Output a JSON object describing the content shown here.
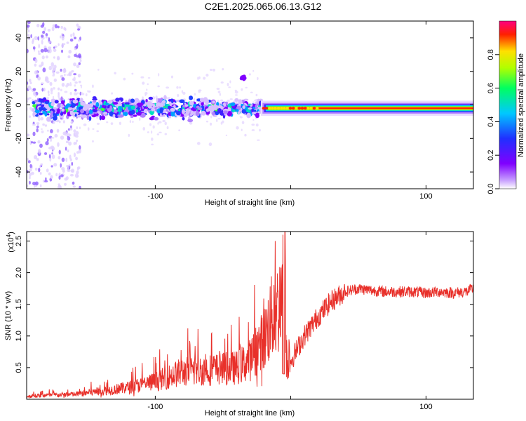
{
  "title": "C2E1.2025.065.06.13.G12",
  "colors": {
    "snr_line": "#e8302a",
    "background": "#ffffff",
    "colormap": [
      "#ffffff",
      "#c8a0ff",
      "#8000ff",
      "#2030ff",
      "#00c8ff",
      "#00ff60",
      "#b0ff00",
      "#ffe000",
      "#ff2000",
      "#ff0080"
    ]
  },
  "chart_data": [
    {
      "type": "heatmap",
      "name": "spectrogram",
      "xlabel": "Height of straight line (km)",
      "ylabel": "Frequency (Hz)",
      "xlim": [
        -195,
        135
      ],
      "ylim": [
        -50,
        50
      ],
      "xticks": [
        -100,
        0,
        100
      ],
      "xtick_labels": [
        "-100",
        "",
        "100"
      ],
      "yticks": [
        -40,
        -20,
        0,
        20,
        40
      ],
      "ytick_labels": [
        "-40",
        "-20",
        "0",
        "20",
        "40"
      ],
      "colorbar": {
        "label": "Normalized spectral amplitude",
        "range": [
          0,
          1
        ],
        "ticks": [
          0.0,
          0.2,
          0.4,
          0.6,
          0.8
        ],
        "tick_labels": [
          "0.0",
          "0.2",
          "0.4",
          "0.6",
          "0.8"
        ]
      },
      "description_points": {
        "signal_band_center_hz": -2,
        "noisy_region_km": [
          -195,
          -20
        ],
        "clean_tone_region_km": [
          -20,
          135
        ]
      }
    },
    {
      "type": "line",
      "name": "snr",
      "xlabel": "Height of straight line (km)",
      "ylabel": "SNR (10 * v/v)",
      "multiplier_label": "(x10",
      "multiplier_exp": "4",
      "multiplier_close": ")",
      "xlim": [
        -195,
        135
      ],
      "ylim": [
        0,
        2.65
      ],
      "xticks": [
        -100,
        0,
        100
      ],
      "xtick_labels": [
        "-100",
        "",
        "100"
      ],
      "yticks": [
        0.5,
        1.0,
        1.5,
        2.0,
        2.5
      ],
      "ytick_labels": [
        "0.5",
        "1.0",
        "1.5",
        "2.0",
        "2.5"
      ],
      "series": [
        {
          "name": "SNR",
          "x": [
            -195,
            -180,
            -160,
            -140,
            -120,
            -100,
            -80,
            -60,
            -40,
            -30,
            -20,
            -15,
            -10,
            -6,
            -5,
            -3,
            0,
            10,
            20,
            30,
            40,
            50,
            60,
            70,
            80,
            90,
            100,
            110,
            120,
            130,
            135
          ],
          "y": [
            0.03,
            0.04,
            0.05,
            0.08,
            0.12,
            0.18,
            0.28,
            0.3,
            0.32,
            0.4,
            0.6,
            0.8,
            0.9,
            1.1,
            2.6,
            0.3,
            0.6,
            1.0,
            1.3,
            1.55,
            1.7,
            1.75,
            1.72,
            1.7,
            1.7,
            1.7,
            1.68,
            1.7,
            1.68,
            1.7,
            1.75
          ]
        }
      ]
    }
  ]
}
